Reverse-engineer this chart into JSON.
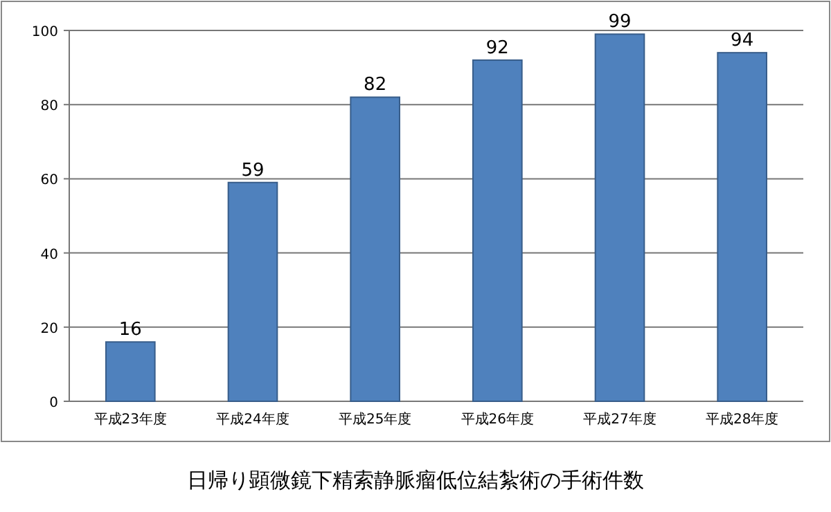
{
  "chart_data": {
    "type": "bar",
    "title": "日帰り顕微鏡下精索静脈瘤低位結紮術の手術件数",
    "categories": [
      "平成23年度",
      "平成24年度",
      "平成25年度",
      "平成26年度",
      "平成27年度",
      "平成28年度"
    ],
    "values": [
      16,
      59,
      82,
      92,
      99,
      94
    ],
    "color": "#4f81bd",
    "ylim": [
      0,
      100
    ],
    "yticks": [
      0,
      20,
      40,
      60,
      80,
      100
    ],
    "grid": "y",
    "data_labels": true
  }
}
